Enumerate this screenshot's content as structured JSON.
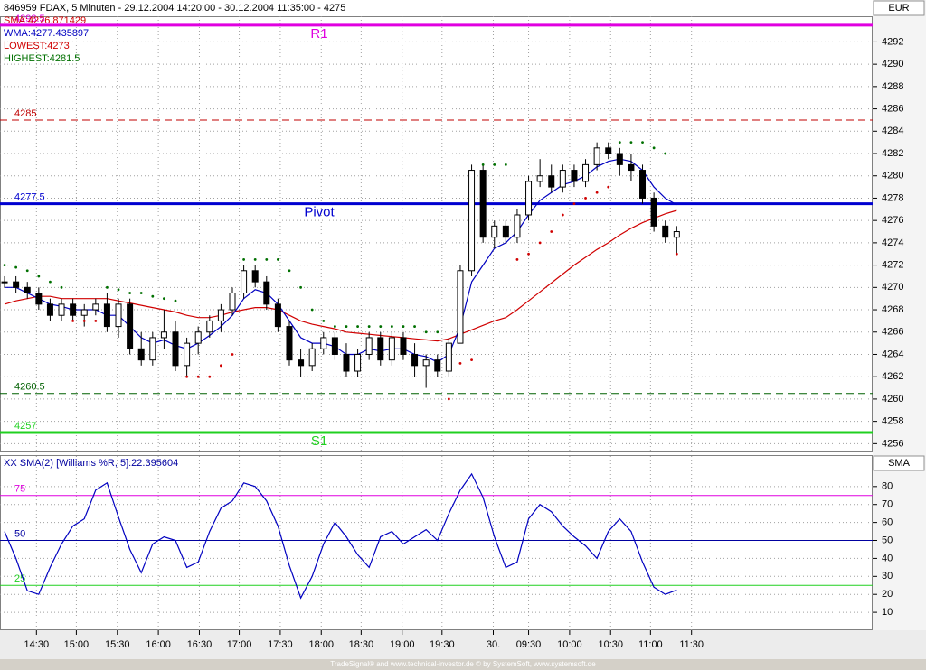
{
  "chart_data": [
    {
      "type": "candlestick",
      "title": "846959 FDAX, 5 Minuten - 29.12.2004 14:20:00 - 30.12.2004 11:35:00 - 4275",
      "legend": [
        {
          "text": "SMA:4276.871429",
          "color": "#d00000"
        },
        {
          "text": "WMA:4277.435897",
          "color": "#0000c0"
        },
        {
          "text": "LOWEST:4273",
          "color": "#d00000"
        },
        {
          "text": "HIGHEST:4281.5",
          "color": "#007000"
        }
      ],
      "axis_label": "EUR",
      "ylim": [
        4255.3,
        4294.3
      ],
      "yticks": [
        4256,
        4258,
        4260,
        4262,
        4264,
        4266,
        4268,
        4270,
        4272,
        4274,
        4276,
        4278,
        4280,
        4282,
        4284,
        4286,
        4288,
        4290,
        4292
      ],
      "grid": true,
      "up_color": "#ffffff",
      "down_color": "#000000",
      "open": [
        4270.5,
        4270.5,
        4270,
        4269.5,
        4268.5,
        4267.5,
        4268.5,
        4267.5,
        4268,
        4268.5,
        4266.5,
        4268.5,
        4264.5,
        4263.5,
        4265.5,
        4266,
        4263,
        4265,
        4266,
        4267,
        4268,
        4269.5,
        4271.5,
        4270.5,
        4268.5,
        4266.5,
        4263.5,
        4263,
        4264.5,
        4265.5,
        4264,
        4262.5,
        4264,
        4265.5,
        4263.5,
        4265.5,
        4264,
        4263,
        4263.5,
        4262.5,
        4265,
        4271.5,
        4280.5,
        4274.5,
        4275.5,
        4274.5,
        4276.5,
        4279.5,
        4280,
        4279,
        4280.5,
        4279.5,
        4281,
        4282.5,
        4282,
        4281,
        4280.5,
        4278,
        4275.5,
        4274.5
      ],
      "high": [
        4271,
        4271,
        4270.5,
        4270,
        4269,
        4269,
        4269,
        4268.5,
        4269,
        4269.5,
        4269,
        4269,
        4266,
        4266,
        4268,
        4267,
        4265.5,
        4266.5,
        4267.5,
        4268.5,
        4270,
        4272,
        4272,
        4271,
        4269,
        4267,
        4264.5,
        4265,
        4266,
        4266,
        4265,
        4264.5,
        4266,
        4266,
        4266,
        4266,
        4265,
        4264,
        4264,
        4265.5,
        4272,
        4281,
        4281,
        4276,
        4276,
        4277,
        4280,
        4281.5,
        4281,
        4281,
        4281,
        4281.5,
        4283,
        4283,
        4282.5,
        4282,
        4281,
        4278.5,
        4276,
        4275.5
      ],
      "low": [
        4270,
        4269.5,
        4269,
        4268,
        4267,
        4267,
        4267,
        4266.5,
        4267.5,
        4266,
        4265.5,
        4264,
        4263,
        4263,
        4264.5,
        4262.5,
        4262,
        4264,
        4265.5,
        4266,
        4267.5,
        4269,
        4270,
        4268,
        4266,
        4263,
        4262,
        4262.5,
        4264,
        4263.5,
        4262,
        4262,
        4263.5,
        4263,
        4263,
        4263.5,
        4262,
        4261,
        4262,
        4262,
        4265,
        4271,
        4274,
        4273.5,
        4274,
        4274,
        4276,
        4279,
        4278.5,
        4278.5,
        4279,
        4279,
        4280.5,
        4281.5,
        4280,
        4279.5,
        4277.5,
        4275,
        4274,
        4273
      ],
      "close": [
        4270.5,
        4270,
        4269.5,
        4268.5,
        4267.5,
        4268.5,
        4267.5,
        4268,
        4268.5,
        4266.5,
        4268.5,
        4264.5,
        4263.5,
        4265.5,
        4266,
        4263,
        4265,
        4266,
        4267,
        4268,
        4269.5,
        4271.5,
        4270.5,
        4268.5,
        4266.5,
        4263.5,
        4263,
        4264.5,
        4265.5,
        4264,
        4262.5,
        4264,
        4265.5,
        4263.5,
        4265.5,
        4264,
        4263,
        4263.5,
        4262.5,
        4265,
        4271.5,
        4280.5,
        4274.5,
        4275.5,
        4274.5,
        4276.5,
        4279.5,
        4280,
        4279,
        4280.5,
        4279.5,
        4281,
        4282.5,
        4282,
        4281,
        4280.5,
        4278,
        4275.5,
        4274.5,
        4275
      ],
      "sar": [
        4272,
        4271.8,
        4271.5,
        4271,
        4270.5,
        4270,
        4267,
        4267,
        4267,
        4270,
        4269.8,
        4269.5,
        4269.5,
        4269.2,
        4269,
        4268.8,
        4262,
        4262,
        4262,
        4263,
        4264,
        4272.5,
        4272.5,
        4272.5,
        4272.5,
        4271.5,
        4270,
        4268,
        4267,
        4266.5,
        4266.5,
        4266.5,
        4266.5,
        4266.5,
        4266.5,
        4266.5,
        4266.5,
        4266,
        4266,
        4260,
        4263.2,
        4263.5,
        4281,
        4281,
        4281,
        4272.5,
        4273,
        4274,
        4275,
        4276.5,
        4277.5,
        4278,
        4278.5,
        4279,
        4283,
        4283,
        4283,
        4282.5,
        4282,
        4273
      ],
      "sar_colors": {
        "above": "#007000",
        "below": "#d00000"
      },
      "series": [
        {
          "color": "#d00000",
          "values": [
            4268.5,
            4268.8,
            4269,
            4269.2,
            4269.2,
            4269,
            4269,
            4269,
            4269,
            4269,
            4268.8,
            4268.6,
            4268.4,
            4268.2,
            4268,
            4267.8,
            4267.5,
            4267.3,
            4267.3,
            4267.5,
            4267.8,
            4268,
            4268.2,
            4268.2,
            4268,
            4267.5,
            4267,
            4266.7,
            4266.5,
            4266.3,
            4266,
            4265.9,
            4265.8,
            4265.7,
            4265.6,
            4265.5,
            4265.4,
            4265.3,
            4265.2,
            4265.4,
            4265.8,
            4266.2,
            4266.6,
            4267,
            4267.3,
            4268,
            4268.8,
            4269.6,
            4270.4,
            4271.2,
            4272,
            4272.7,
            4273.4,
            4274,
            4274.7,
            4275.3,
            4275.8,
            4276.2,
            4276.6,
            4276.9
          ]
        },
        {
          "color": "#0000c0",
          "values": [
            4270,
            4270,
            4269.5,
            4269,
            4268.5,
            4268.3,
            4268,
            4268,
            4268,
            4267.5,
            4267.5,
            4266.5,
            4265.5,
            4265,
            4265.3,
            4264.8,
            4264.5,
            4265,
            4265.7,
            4266.5,
            4267.5,
            4269,
            4269.8,
            4269.5,
            4268.5,
            4267,
            4265.5,
            4265,
            4265,
            4264.7,
            4264,
            4264,
            4264.5,
            4264.3,
            4264.5,
            4264.5,
            4264,
            4263.8,
            4263.3,
            4264,
            4266.5,
            4270.5,
            4272,
            4273.5,
            4274,
            4275,
            4276.5,
            4277.8,
            4278.5,
            4279.2,
            4279.5,
            4280,
            4280.8,
            4281.3,
            4281.5,
            4281.3,
            4280.5,
            4279,
            4278,
            4277.4
          ]
        }
      ],
      "levels": [
        {
          "value": 4293.5,
          "name": "R1",
          "color": "#e000e0",
          "dash": false
        },
        {
          "value": 4285,
          "color": "#c00000",
          "dash": true
        },
        {
          "value": 4277.5,
          "name": "Pivot",
          "color": "#0000d0",
          "dash": false
        },
        {
          "value": 4260.5,
          "color": "#006000",
          "dash": true
        },
        {
          "value": 4257,
          "name": "S1",
          "color": "#20d020",
          "dash": false
        }
      ]
    },
    {
      "type": "line",
      "title": "XX SMA(2) [Williams %R, 5]:22.395604",
      "axis_label": "SMA",
      "ylim": [
        0,
        97
      ],
      "yticks": [
        10,
        20,
        30,
        40,
        50,
        60,
        70,
        80
      ],
      "xlim": [
        -0.4,
        76.2
      ],
      "xticks": [
        {
          "value": 2.8,
          "label": "14:30"
        },
        {
          "value": 6.3,
          "label": "15:00"
        },
        {
          "value": 9.9,
          "label": "15:30"
        },
        {
          "value": 13.5,
          "label": "16:00"
        },
        {
          "value": 17.1,
          "label": "16:30"
        },
        {
          "value": 20.6,
          "label": "17:00"
        },
        {
          "value": 24.2,
          "label": "17:30"
        },
        {
          "value": 27.8,
          "label": "18:00"
        },
        {
          "value": 31.3,
          "label": "18:30"
        },
        {
          "value": 34.9,
          "label": "19:00"
        },
        {
          "value": 38.4,
          "label": "19:30"
        },
        {
          "value": 42.9,
          "label": "30."
        },
        {
          "value": 46.0,
          "label": "09:30"
        },
        {
          "value": 49.6,
          "label": "10:00"
        },
        {
          "value": 53.2,
          "label": "10:30"
        },
        {
          "value": 56.7,
          "label": "11:00"
        },
        {
          "value": 60.3,
          "label": "11:30"
        }
      ],
      "grid": true,
      "series": [
        {
          "color": "#0000c0",
          "values": [
            55,
            40,
            22,
            20,
            35,
            48,
            58,
            62,
            78,
            82,
            63,
            45,
            32,
            48,
            52,
            50,
            35,
            38,
            55,
            68,
            72,
            82,
            80,
            72,
            58,
            36,
            18,
            30,
            48,
            60,
            52,
            42,
            35,
            52,
            55,
            48,
            52,
            56,
            50,
            65,
            78,
            87,
            74,
            52,
            35,
            38,
            62,
            70,
            66,
            58,
            52,
            47,
            40,
            55,
            62,
            55,
            38,
            24,
            20,
            22.395604
          ]
        }
      ],
      "levels": [
        {
          "value": 75,
          "color": "#e000e0"
        },
        {
          "value": 50,
          "color": "#0000a0"
        },
        {
          "value": 25,
          "color": "#20d020"
        }
      ]
    },
    {
      "footer": "TradeSignal® and www.technical-investor.de © by SystemSoft, www.systemsoft.de"
    }
  ]
}
